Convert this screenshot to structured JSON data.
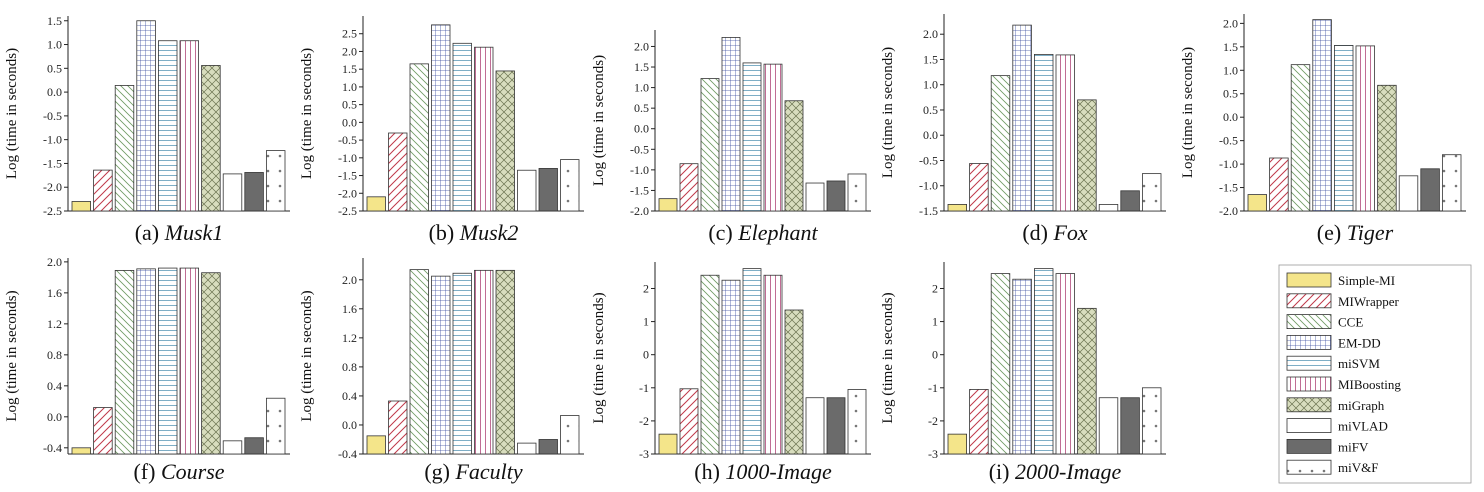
{
  "y_axis_label": "Log (time in seconds)",
  "legend": {
    "position": "right",
    "entries": [
      "Simple-MI",
      "MIWrapper",
      "CCE",
      "EM-DD",
      "miSVM",
      "MIBoosting",
      "miGraph",
      "miVLAD",
      "miFV",
      "miV&F"
    ]
  },
  "chart_data": [
    {
      "type": "bar",
      "caption_prefix": "(a)",
      "caption_name": "Musk1",
      "ylim": [
        -2.5,
        1.6
      ],
      "yticks": [
        -2.5,
        -2.0,
        -1.5,
        -1.0,
        -0.5,
        0.0,
        0.5,
        1.0,
        1.5
      ],
      "tick_labels": [
        "-2.5",
        "-2.0",
        "-1.5",
        "-1.0",
        "-0.5",
        "0.0",
        "0.5",
        "1.0",
        "1.5"
      ],
      "categories": [
        "Simple-MI",
        "MIWrapper",
        "CCE",
        "EM-DD",
        "miSVM",
        "MIBoosting",
        "miGraph",
        "miVLAD",
        "miFV",
        "miV&F"
      ],
      "values": [
        -2.3,
        -1.64,
        0.14,
        1.5,
        1.08,
        1.08,
        0.56,
        -1.72,
        -1.69,
        -1.23
      ]
    },
    {
      "type": "bar",
      "caption_prefix": "(b)",
      "caption_name": "Musk2",
      "ylim": [
        -2.5,
        3.0
      ],
      "yticks": [
        -2.5,
        -2.0,
        -1.5,
        -1.0,
        -0.5,
        0.0,
        0.5,
        1.0,
        1.5,
        2.0,
        2.5
      ],
      "tick_labels": [
        "-2.5",
        "-2.0",
        "-1.5",
        "-1.0",
        "-0.5",
        "0.0",
        "0.5",
        "1.0",
        "1.5",
        "2.0",
        "2.5"
      ],
      "categories": [
        "Simple-MI",
        "MIWrapper",
        "CCE",
        "EM-DD",
        "miSVM",
        "MIBoosting",
        "miGraph",
        "miVLAD",
        "miFV",
        "miV&F"
      ],
      "values": [
        -2.1,
        -0.3,
        1.65,
        2.75,
        2.23,
        2.12,
        1.45,
        -1.35,
        -1.3,
        -1.05
      ]
    },
    {
      "type": "bar",
      "caption_prefix": "(c)",
      "caption_name": "Elephant",
      "ylim": [
        -2.0,
        2.4
      ],
      "yticks": [
        -2.0,
        -1.5,
        -1.0,
        -0.5,
        0.0,
        0.5,
        1.0,
        1.5,
        2.0
      ],
      "tick_labels": [
        "-2.0",
        "-1.5",
        "-1.0",
        "-0.5",
        "0.0",
        "0.5",
        "1.0",
        "1.5",
        "2.0"
      ],
      "categories": [
        "Simple-MI",
        "MIWrapper",
        "CCE",
        "EM-DD",
        "miSVM",
        "MIBoosting",
        "miGraph",
        "miVLAD",
        "miFV",
        "miV&F"
      ],
      "values": [
        -1.7,
        -0.85,
        1.22,
        2.22,
        1.6,
        1.57,
        0.68,
        -1.32,
        -1.27,
        -1.1
      ]
    },
    {
      "type": "bar",
      "caption_prefix": "(d)",
      "caption_name": "Fox",
      "ylim": [
        -1.5,
        2.4
      ],
      "yticks": [
        -1.5,
        -1.0,
        -0.5,
        0.0,
        0.5,
        1.0,
        1.5,
        2.0
      ],
      "tick_labels": [
        "-1.5",
        "-1.0",
        "-0.5",
        "0.0",
        "0.5",
        "1.0",
        "1.5",
        "2.0"
      ],
      "categories": [
        "Simple-MI",
        "MIWrapper",
        "CCE",
        "EM-DD",
        "miSVM",
        "MIBoosting",
        "miGraph",
        "miVLAD",
        "miFV",
        "miV&F"
      ],
      "values": [
        -1.37,
        -0.56,
        1.18,
        2.18,
        1.6,
        1.59,
        0.7,
        -1.37,
        -1.1,
        -0.76
      ]
    },
    {
      "type": "bar",
      "caption_prefix": "(e)",
      "caption_name": "Tiger",
      "ylim": [
        -2.0,
        2.2
      ],
      "yticks": [
        -2.0,
        -1.5,
        -1.0,
        -0.5,
        0.0,
        0.5,
        1.0,
        1.5,
        2.0
      ],
      "tick_labels": [
        "-2.0",
        "-1.5",
        "-1.0",
        "-0.5",
        "0.0",
        "0.5",
        "1.0",
        "1.5",
        "2.0"
      ],
      "categories": [
        "Simple-MI",
        "MIWrapper",
        "CCE",
        "EM-DD",
        "miSVM",
        "MIBoosting",
        "miGraph",
        "miVLAD",
        "miFV",
        "miV&F"
      ],
      "values": [
        -1.65,
        -0.87,
        1.12,
        2.08,
        1.53,
        1.52,
        0.68,
        -1.25,
        -1.1,
        -0.8
      ]
    },
    {
      "type": "bar",
      "caption_prefix": "(f)",
      "caption_name": "Course",
      "ylim": [
        -0.48,
        2.05
      ],
      "yticks": [
        -0.4,
        0.0,
        0.4,
        0.8,
        1.2,
        1.6,
        2.0
      ],
      "tick_labels": [
        "-0.4",
        "0.0",
        "0.4",
        "0.8",
        "1.2",
        "1.6",
        "2.0"
      ],
      "categories": [
        "Simple-MI",
        "MIWrapper",
        "CCE",
        "EM-DD",
        "miSVM",
        "MIBoosting",
        "miGraph",
        "miVLAD",
        "miFV",
        "miV&F"
      ],
      "values": [
        -0.4,
        0.12,
        1.89,
        1.91,
        1.92,
        1.92,
        1.86,
        -0.31,
        -0.27,
        0.24
      ]
    },
    {
      "type": "bar",
      "caption_prefix": "(g)",
      "caption_name": "Faculty",
      "ylim": [
        -0.4,
        2.3
      ],
      "yticks": [
        -0.4,
        0.0,
        0.4,
        0.8,
        1.2,
        1.6,
        2.0
      ],
      "tick_labels": [
        "-0.4",
        "0.0",
        "0.4",
        "0.8",
        "1.2",
        "1.6",
        "2.0"
      ],
      "categories": [
        "Simple-MI",
        "MIWrapper",
        "CCE",
        "EM-DD",
        "miSVM",
        "MIBoosting",
        "miGraph",
        "miVLAD",
        "miFV",
        "miV&F"
      ],
      "values": [
        -0.15,
        0.33,
        2.14,
        2.05,
        2.09,
        2.13,
        2.13,
        -0.25,
        -0.2,
        0.13
      ]
    },
    {
      "type": "bar",
      "caption_prefix": "(h)",
      "caption_name": "1000-Image",
      "ylim": [
        -3.0,
        2.8
      ],
      "yticks": [
        -3,
        -2,
        -1,
        0,
        1,
        2
      ],
      "tick_labels": [
        "-3",
        "-2",
        "-1",
        "0",
        "1",
        "2"
      ],
      "categories": [
        "Simple-MI",
        "MIWrapper",
        "CCE",
        "EM-DD",
        "miSVM",
        "MIBoosting",
        "miGraph",
        "miVLAD",
        "miFV",
        "miV&F"
      ],
      "values": [
        -2.4,
        -1.03,
        2.4,
        2.25,
        2.6,
        2.4,
        1.35,
        -1.3,
        -1.3,
        -1.05
      ]
    },
    {
      "type": "bar",
      "caption_prefix": "(i)",
      "caption_name": "2000-Image",
      "ylim": [
        -3.0,
        2.8
      ],
      "yticks": [
        -3,
        -2,
        -1,
        0,
        1,
        2
      ],
      "tick_labels": [
        "-3",
        "-2",
        "-1",
        "0",
        "1",
        "2"
      ],
      "categories": [
        "Simple-MI",
        "MIWrapper",
        "CCE",
        "EM-DD",
        "miSVM",
        "MIBoosting",
        "miGraph",
        "miVLAD",
        "miFV",
        "miV&F"
      ],
      "values": [
        -2.4,
        -1.05,
        2.45,
        2.28,
        2.6,
        2.45,
        1.4,
        -1.3,
        -1.3,
        -1.0
      ]
    }
  ]
}
